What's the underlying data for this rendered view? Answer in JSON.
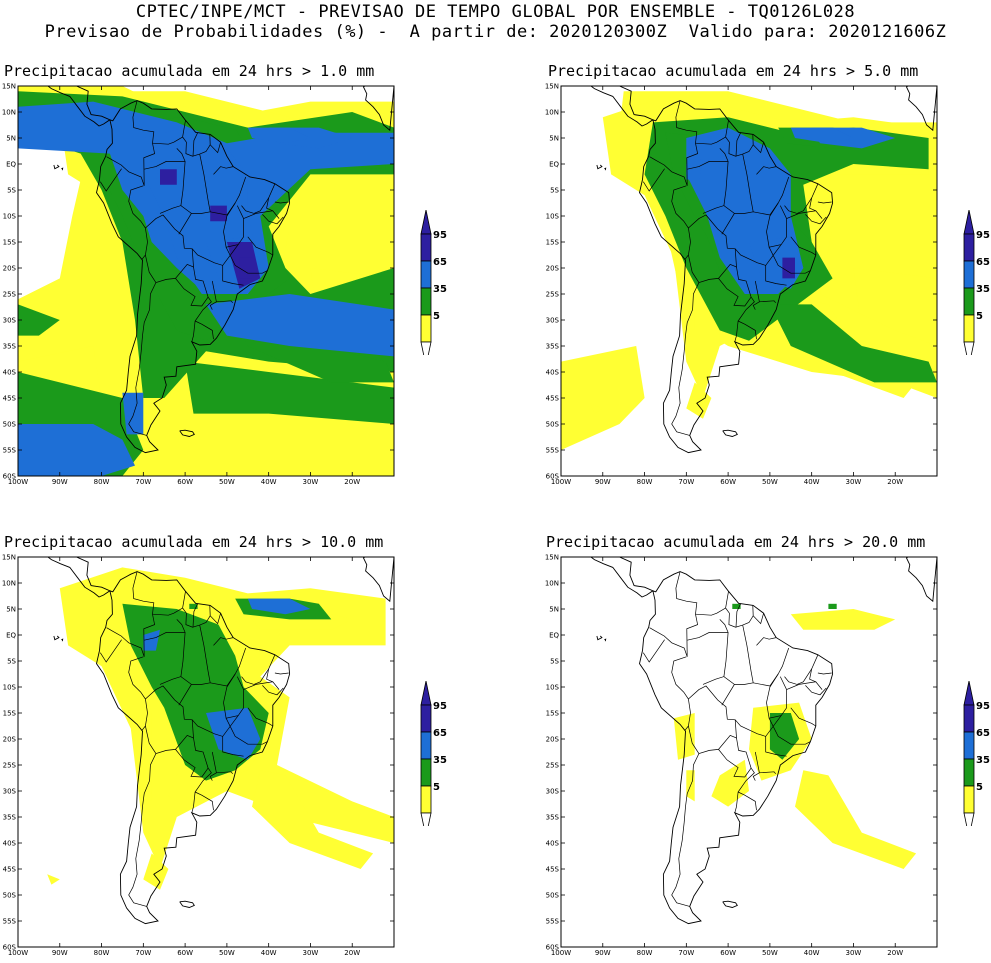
{
  "header": {
    "line1": "CPTEC/INPE/MCT - PREVISAO DE TEMPO GLOBAL POR ENSEMBLE - TQ0126L028",
    "line2": "Previsao de Probabilidades (%) -  A partir de: 2020120300Z  Valido para: 2020121606Z"
  },
  "panels": [
    {
      "title": "Precipitacao acumulada em 24 hrs > 1.0 mm",
      "level": 4
    },
    {
      "title": "Precipitacao acumulada em 24 hrs > 5.0 mm",
      "level": 3
    },
    {
      "title": "Precipitacao acumulada em 24 hrs > 10.0 mm",
      "level": 2
    },
    {
      "title": "Precipitacao acumulada em 24 hrs > 20.0 mm",
      "level": 1
    }
  ],
  "axes": {
    "lat_labels": [
      "15N",
      "10N",
      "5N",
      "EQ",
      "5S",
      "10S",
      "15S",
      "20S",
      "25S",
      "30S",
      "35S",
      "40S",
      "45S",
      "50S",
      "55S",
      "60S"
    ],
    "lon_labels": [
      "100W",
      "90W",
      "80W",
      "70W",
      "60W",
      "50W",
      "40W",
      "30W",
      "20W"
    ]
  },
  "colorbar": {
    "labels": [
      "95",
      "65",
      "35",
      "5"
    ],
    "colors": {
      "c5": "#ffff33",
      "c35": "#1b9a1b",
      "c65": "#1e6fd6",
      "c95": "#2d1fa0",
      "background": "#ffffff"
    }
  }
}
